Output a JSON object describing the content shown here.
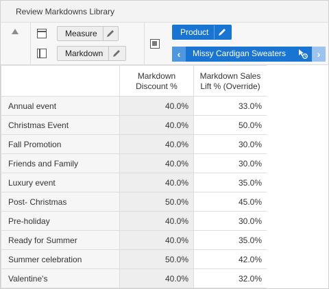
{
  "window": {
    "title": "Review Markdowns Library"
  },
  "toolbar": {
    "row_edge_label": "Measure",
    "column_edge_label": "Markdown",
    "page_edge_label": "Product",
    "page_value": "Missy Cardigan Sweaters"
  },
  "grid": {
    "columns": [
      "Markdown\nDiscount %",
      "Markdown Sales\nLift % (Override)"
    ],
    "rows": [
      {
        "name": "Annual event",
        "discount": "40.0%",
        "lift": "33.0%"
      },
      {
        "name": "Christmas Event",
        "discount": "40.0%",
        "lift": "50.0%"
      },
      {
        "name": "Fall Promotion",
        "discount": "40.0%",
        "lift": "30.0%"
      },
      {
        "name": "Friends and Family",
        "discount": "40.0%",
        "lift": "30.0%"
      },
      {
        "name": "Luxury event",
        "discount": "40.0%",
        "lift": "35.0%"
      },
      {
        "name": "Post- Christmas",
        "discount": "50.0%",
        "lift": "45.0%"
      },
      {
        "name": "Pre-holiday",
        "discount": "40.0%",
        "lift": "30.0%"
      },
      {
        "name": "Ready for Summer",
        "discount": "40.0%",
        "lift": "35.0%"
      },
      {
        "name": "Summer celebration",
        "discount": "50.0%",
        "lift": "42.0%"
      },
      {
        "name": "Valentine's",
        "discount": "40.0%",
        "lift": "32.0%"
      }
    ]
  },
  "icons": {
    "collapse": "triangle-up-icon",
    "rows": "rows-edge-icon",
    "cols": "columns-edge-icon",
    "page": "page-edge-icon",
    "edit": "pencil-icon",
    "prev": "chevron-left-icon",
    "next": "chevron-right-icon",
    "picker": "cursor-refresh-icon"
  },
  "colors": {
    "accent": "#1a75d2",
    "grid_readonly": "#eeeeee",
    "row_header": "#f6f6f6"
  }
}
